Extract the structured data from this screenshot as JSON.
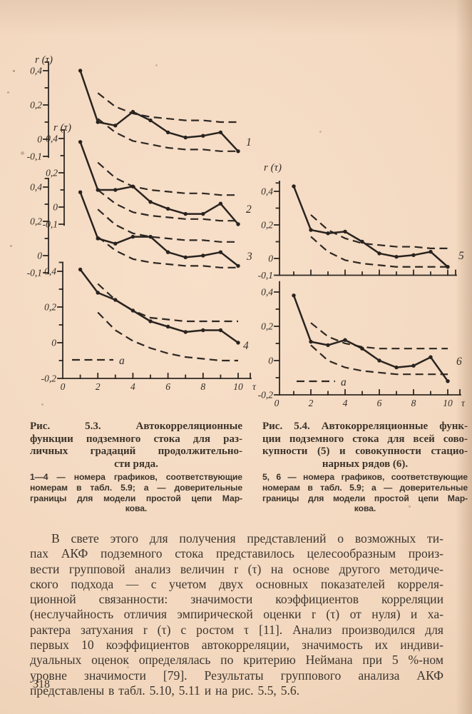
{
  "page": {
    "number": "318"
  },
  "figure_53": {
    "caption_lines": [
      "Рис. 5.3. Автокорреляционные",
      "функции подземного стока для раз-",
      "личных градаций продолжительно-",
      "сти ряда."
    ],
    "note_lines": [
      "1—4 — номера графиков, соответствующие",
      "номерам в табл. 5.9; а — доверительные",
      "границы для модели простой цепи Мар-",
      "кова."
    ]
  },
  "figure_54": {
    "caption_lines": [
      "Рис. 5.4. Автокорреляционные функ-",
      "ции подземного стока для всей сово-",
      "купности (5) и совокупности стацио-",
      "нарных рядов (6)."
    ],
    "note_lines": [
      "5, 6 — номера графиков, соответствующие",
      "номерам в табл. 5.9; а — доверительные",
      "границы для модели простой цепи Мар-",
      "кова."
    ]
  },
  "body": {
    "lines": [
      "В свете этого для получения представлений о возможных ти-",
      "пах АКФ подземного стока представилось целесообразным произ-",
      "вести групповой анализ величин r (τ) на основе другого методиче-",
      "ского подхода — с учетом двух основных показателей корреля-",
      "ционной связанности: значимости коэффициентов корреляции",
      "(неслучайность отличия эмпирической оценки r (τ) от нуля) и ха-",
      "рактера затухания r (τ) с ростом τ [11]. Анализ производился для",
      "первых 10 коэффициентов автокорреляции, значимость их индиви-",
      "дуальных оценок определялась по критерию Неймана при 5 %-ном",
      "уровне значимости [79]. Результаты группового анализа АКФ",
      "представлены в табл. 5.10, 5.11 и на рис. 5.5, 5.6."
    ]
  },
  "chart_data": {
    "figures": [
      {
        "name": "Рис. 5.3",
        "type": "line",
        "ylabel": "r (τ)",
        "xlabel": "τ",
        "x_tick_labels": [
          "0",
          "2",
          "4",
          "6",
          "8",
          "10"
        ],
        "x": [
          1,
          2,
          3,
          4,
          5,
          6,
          7,
          8,
          9,
          10
        ],
        "legend_label": "а",
        "legend_meaning": "доверительные границы для модели простой цепи Маркова",
        "xlim": [
          0,
          10.5
        ],
        "grid": false,
        "subcharts": [
          {
            "label": "1",
            "y_tick_labels": [
              "0,4",
              "0,2",
              "0",
              "-0,1"
            ],
            "ylim": [
              -0.1,
              0.45
            ],
            "values": [
              0.4,
              0.1,
              0.08,
              0.16,
              0.11,
              0.04,
              0.01,
              0.02,
              0.04,
              -0.07
            ],
            "upper_bound": [
              null,
              0.27,
              0.19,
              0.15,
              0.13,
              0.12,
              0.11,
              0.11,
              0.1,
              0.1
            ],
            "lower_bound": [
              null,
              0.12,
              0.04,
              -0.01,
              -0.03,
              -0.05,
              -0.06,
              -0.06,
              -0.07,
              -0.07
            ]
          },
          {
            "label": "2",
            "y_tick_labels": [
              "0,4",
              "0,2",
              "0",
              "-0,1"
            ],
            "ylim": [
              -0.1,
              0.45
            ],
            "values": [
              0.38,
              0.1,
              0.1,
              0.12,
              0.03,
              -0.01,
              -0.04,
              -0.04,
              0.02,
              -0.1
            ],
            "upper_bound": [
              null,
              0.26,
              0.17,
              0.12,
              0.1,
              0.09,
              0.08,
              0.08,
              0.07,
              0.07
            ],
            "lower_bound": [
              null,
              0.1,
              0.02,
              -0.03,
              -0.05,
              -0.06,
              -0.07,
              -0.07,
              -0.08,
              -0.08
            ]
          },
          {
            "label": "3",
            "y_tick_labels": [
              "0,4",
              "0,2",
              "0",
              "-0,1"
            ],
            "ylim": [
              -0.1,
              0.45
            ],
            "values": [
              0.37,
              0.1,
              0.07,
              0.11,
              0.11,
              0.02,
              -0.01,
              0.0,
              0.02,
              -0.06
            ],
            "upper_bound": [
              null,
              0.27,
              0.18,
              0.13,
              0.11,
              0.1,
              0.09,
              0.09,
              0.08,
              0.08
            ],
            "lower_bound": [
              null,
              0.11,
              0.03,
              -0.02,
              -0.04,
              -0.05,
              -0.06,
              -0.06,
              -0.07,
              -0.07
            ]
          },
          {
            "label": "4",
            "y_tick_labels": [
              "0,4",
              "0,2",
              "0",
              "-0,2"
            ],
            "ylim": [
              -0.2,
              0.45
            ],
            "values": [
              0.41,
              0.28,
              0.24,
              0.18,
              0.12,
              0.09,
              0.06,
              0.07,
              0.07,
              0.0
            ],
            "upper_bound": [
              null,
              0.33,
              0.24,
              0.18,
              0.14,
              0.13,
              0.12,
              0.12,
              0.12,
              0.12
            ],
            "lower_bound": [
              null,
              0.17,
              0.07,
              0.01,
              -0.03,
              -0.06,
              -0.08,
              -0.09,
              -0.1,
              -0.1
            ]
          }
        ]
      },
      {
        "name": "Рис. 5.4",
        "type": "line",
        "ylabel": "r (τ)",
        "xlabel": "τ",
        "x_tick_labels": [
          "0",
          "2",
          "4",
          "6",
          "8",
          "10"
        ],
        "x": [
          1,
          2,
          3,
          4,
          5,
          6,
          7,
          8,
          9,
          10
        ],
        "legend_label": "а",
        "legend_meaning": "доверительные границы для модели простой цепи Маркова",
        "xlim": [
          0,
          10.5
        ],
        "grid": false,
        "subcharts": [
          {
            "label": "5",
            "y_tick_labels": [
              "0,4",
              "0,2",
              "0",
              "-0,1"
            ],
            "ylim": [
              -0.1,
              0.46
            ],
            "values": [
              0.43,
              0.17,
              0.15,
              0.16,
              0.1,
              0.03,
              0.01,
              0.02,
              0.04,
              -0.05
            ],
            "upper_bound": [
              null,
              0.26,
              0.17,
              0.12,
              0.09,
              0.08,
              0.07,
              0.07,
              0.06,
              0.06
            ],
            "lower_bound": [
              null,
              0.13,
              0.04,
              -0.01,
              -0.03,
              -0.04,
              -0.05,
              -0.05,
              -0.05,
              -0.05
            ]
          },
          {
            "label": "6",
            "y_tick_labels": [
              "0,4",
              "0,2",
              "0",
              "-0,2"
            ],
            "ylim": [
              -0.2,
              0.46
            ],
            "values": [
              0.38,
              0.11,
              0.09,
              0.12,
              0.07,
              0.0,
              -0.04,
              -0.03,
              0.02,
              -0.12
            ],
            "upper_bound": [
              null,
              0.22,
              0.14,
              0.1,
              0.08,
              0.07,
              0.07,
              0.07,
              0.07,
              0.07
            ],
            "lower_bound": [
              null,
              0.09,
              0.0,
              -0.04,
              -0.06,
              -0.07,
              -0.08,
              -0.08,
              -0.08,
              -0.08
            ]
          }
        ]
      }
    ]
  }
}
